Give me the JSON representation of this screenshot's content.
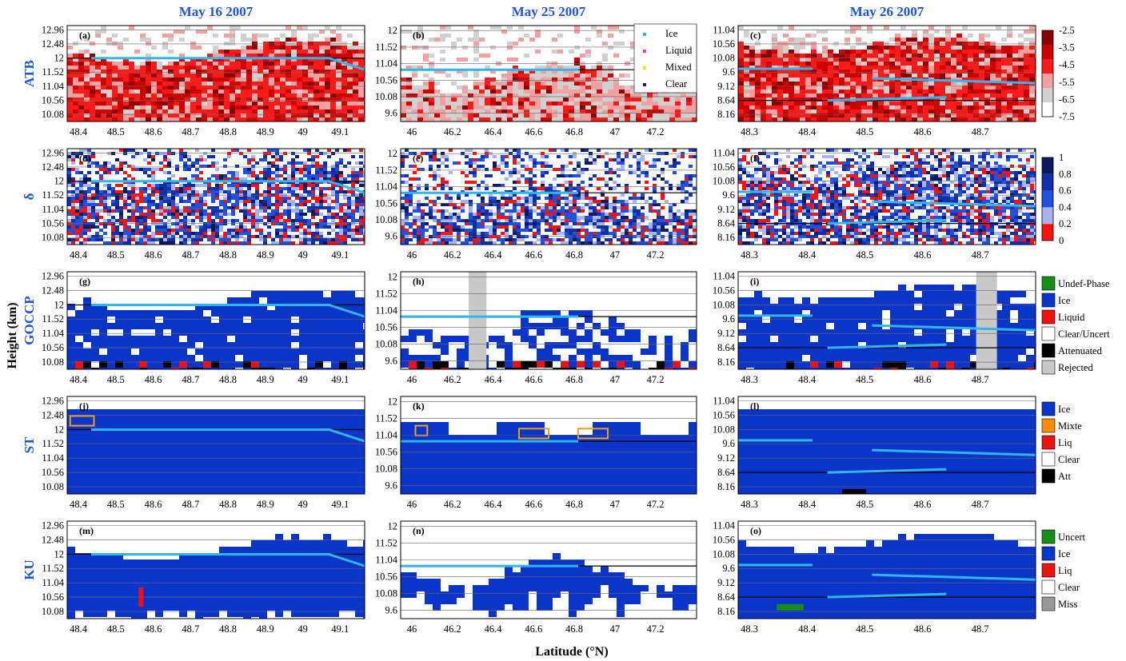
{
  "figure": {
    "xlabel": "Latitude (°N)",
    "ylabel": "Height (km)"
  },
  "columns": [
    {
      "title": "May 16 2007",
      "xticks": [
        "48.4",
        "48.5",
        "48.6",
        "48.7",
        "48.8",
        "48.9",
        "49",
        "49.1"
      ],
      "xrange": [
        48.4,
        49.15
      ]
    },
    {
      "title": "May 25 2007",
      "xticks": [
        "46",
        "46.2",
        "46.4",
        "46.6",
        "46.8",
        "47",
        "47.2"
      ],
      "xrange": [
        45.9,
        47.33
      ]
    },
    {
      "title": "May 26 2007",
      "xticks": [
        "48.3",
        "48.4",
        "48.5",
        "48.6",
        "48.7"
      ],
      "xrange": [
        48.24,
        48.8
      ]
    }
  ],
  "rows": [
    {
      "label": "ATB",
      "panels": [
        "(a)",
        "(b)",
        "(c)"
      ]
    },
    {
      "label": "δ",
      "panels": [
        "(d)",
        "(e)",
        "(f)"
      ]
    },
    {
      "label": "GOCCP",
      "panels": [
        "(g)",
        "(h)",
        "(i)"
      ]
    },
    {
      "label": "ST",
      "panels": [
        "(j)",
        "(k)",
        "(l)"
      ]
    },
    {
      "label": "KU",
      "panels": [
        "(m)",
        "(n)",
        "(o)"
      ]
    }
  ],
  "yticks": [
    [
      "12.96",
      "12.48",
      "12",
      "11.52",
      "11.04",
      "10.56",
      "10.08"
    ],
    [
      "12",
      "11.52",
      "11.04",
      "10.56",
      "10.08",
      "9.6"
    ],
    [
      "11.04",
      "10.56",
      "10.08",
      "9.6",
      "9.12",
      "8.64",
      "8.16"
    ]
  ],
  "yticks_row": {
    "ATB": [
      [
        "12.96",
        "12.48",
        "12",
        "11.52",
        "11.04",
        "10.56",
        "10.08"
      ],
      [
        "12",
        "11.52",
        "11.04",
        "10.56",
        "10.08",
        "9.6"
      ],
      [
        "11.04",
        "10.56",
        "10.08",
        "9.6",
        "9.12",
        "8.64",
        "8.16"
      ]
    ]
  },
  "legend_b": [
    "Ice",
    "Liquid",
    "Mixed",
    "Clear"
  ],
  "legend_colors": {
    "Ice": "#2fb6ee",
    "Liquid": "#e040e0",
    "Mixed": "#f0e020",
    "Clear": "#1a1a80"
  },
  "colorbars": [
    {
      "row": "ATB",
      "ticks": [
        "-2.5",
        "-3.5",
        "-4.5",
        "-5.5",
        "-6.5",
        "-7.5"
      ],
      "colors": [
        "#8b0000",
        "#cc0000",
        "#ff1a1a",
        "#f4a0a0",
        "#d0d0d0",
        "#ffffff"
      ]
    },
    {
      "row": "δ",
      "ticks": [
        "1",
        "0.8",
        "0.6",
        "0.4",
        "0.2",
        "0"
      ],
      "colors": [
        "#0a1a5c",
        "#1030a8",
        "#2050e0",
        "#a8b4f0",
        "#ff1010"
      ]
    }
  ],
  "class_legends": [
    {
      "row": "GOCCP",
      "items": [
        {
          "label": "Undef-Phase",
          "color": "#1a8c1a"
        },
        {
          "label": "Ice",
          "color": "#0a35c8"
        },
        {
          "label": "Liquid",
          "color": "#ee1111"
        },
        {
          "label": "Clear/Uncert",
          "color": "#ffffff"
        },
        {
          "label": "Attenuated",
          "color": "#000000"
        },
        {
          "label": "Rejected",
          "color": "#c8c8c8"
        }
      ]
    },
    {
      "row": "ST",
      "items": [
        {
          "label": "Ice",
          "color": "#0a35c8"
        },
        {
          "label": "Mixte",
          "color": "#ff8c00"
        },
        {
          "label": "Liq",
          "color": "#ee1111"
        },
        {
          "label": "Clear",
          "color": "#ffffff"
        },
        {
          "label": "Att",
          "color": "#000000"
        }
      ]
    },
    {
      "row": "KU",
      "items": [
        {
          "label": "Uncert",
          "color": "#1a8c1a"
        },
        {
          "label": "Ice",
          "color": "#0a35c8"
        },
        {
          "label": "Liq",
          "color": "#ee1111"
        },
        {
          "label": "Clear",
          "color": "#ffffff"
        },
        {
          "label": "Miss",
          "color": "#999999"
        }
      ]
    }
  ],
  "chart_data": {
    "type": "heatmap",
    "title": "",
    "xlabel": "Latitude (°N)",
    "ylabel": "Height (km)",
    "ice_track_color": "#2fb6ee",
    "panels": [
      {
        "id": "(a)",
        "ylim": [
          10.08,
          12.96
        ],
        "xlim": [
          48.4,
          49.15
        ]
      },
      {
        "id": "(b)",
        "ylim": [
          9.6,
          12
        ],
        "xlim": [
          45.9,
          47.33
        ]
      },
      {
        "id": "(c)",
        "ylim": [
          8.16,
          11.36
        ],
        "xlim": [
          48.24,
          48.8
        ]
      }
    ]
  }
}
